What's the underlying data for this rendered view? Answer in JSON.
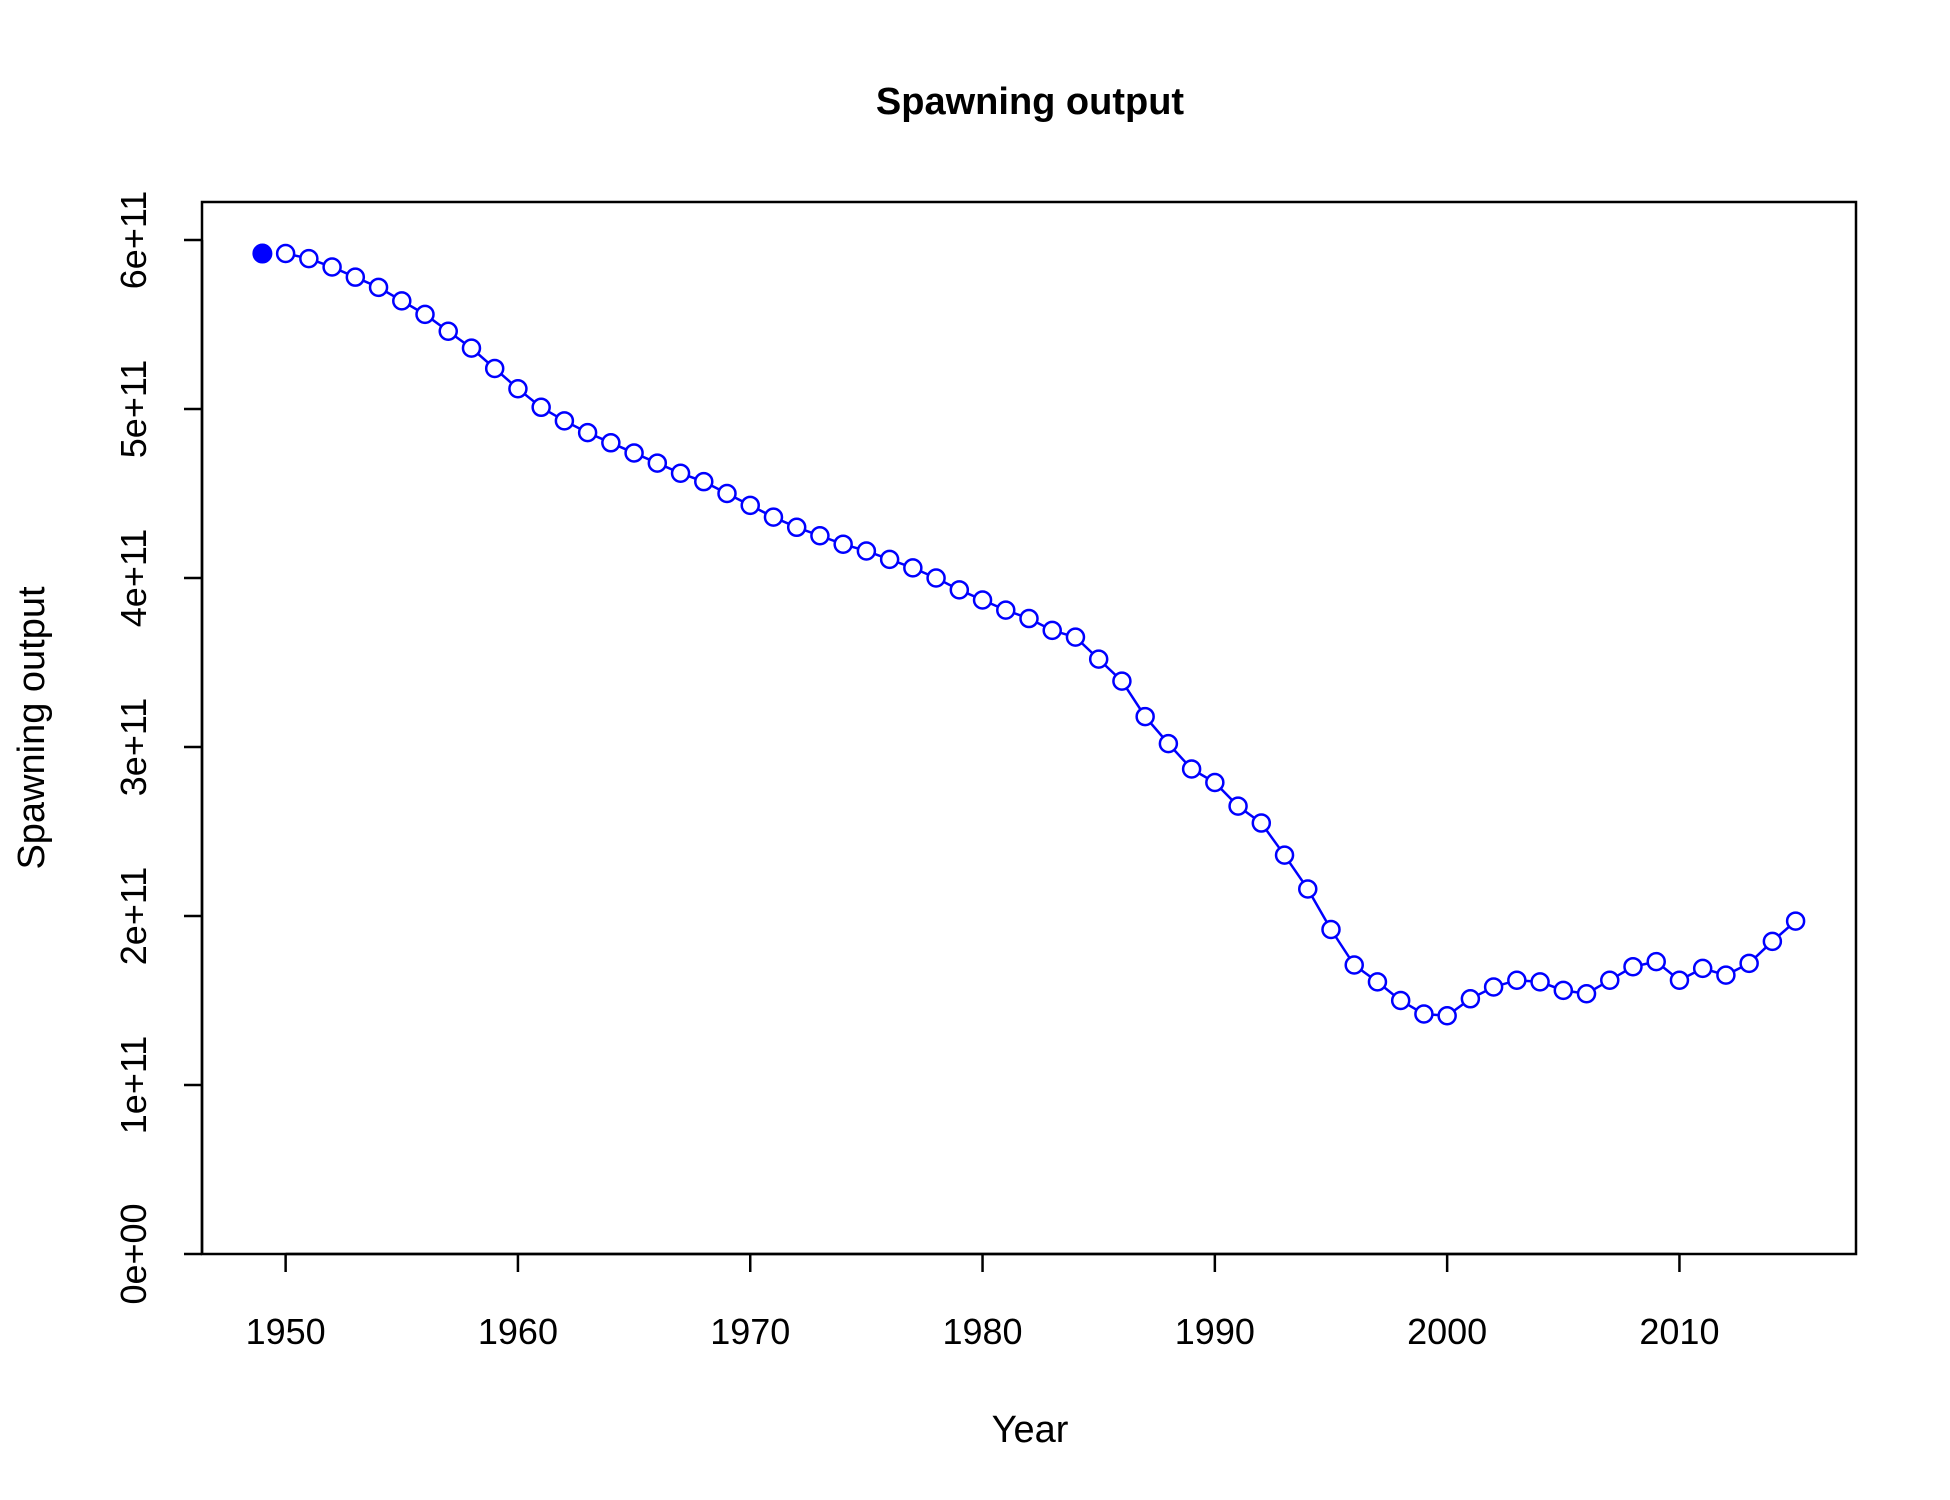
{
  "chart_data": {
    "type": "line",
    "title": "Spawning output",
    "xlabel": "Year",
    "ylabel": "Spawning output",
    "xlim": [
      1946.4,
      2017.6
    ],
    "ylim": [
      0,
      600000000000
    ],
    "x_ticks": [
      1950,
      1960,
      1970,
      1980,
      1990,
      2000,
      2010
    ],
    "x_tick_labels": [
      "1950",
      "1960",
      "1970",
      "1980",
      "1990",
      "2000",
      "2010"
    ],
    "y_ticks": [
      0,
      100000000000,
      200000000000,
      300000000000,
      400000000000,
      500000000000,
      600000000000
    ],
    "y_tick_labels": [
      "0e+00",
      "1e+11",
      "2e+11",
      "3e+11",
      "4e+11",
      "5e+11",
      "6e+11"
    ],
    "grid": false,
    "legend": "none",
    "colors": {
      "series": "#0000ff",
      "axis": "#000000"
    },
    "virgin_point": {
      "x": 1949,
      "y": 592000000000,
      "marker": "filled-circle"
    },
    "series": [
      {
        "marker": "open-circle",
        "x": [
          1950,
          1951,
          1952,
          1953,
          1954,
          1955,
          1956,
          1957,
          1958,
          1959,
          1960,
          1961,
          1962,
          1963,
          1964,
          1965,
          1966,
          1967,
          1968,
          1969,
          1970,
          1971,
          1972,
          1973,
          1974,
          1975,
          1976,
          1977,
          1978,
          1979,
          1980,
          1981,
          1982,
          1983,
          1984,
          1985,
          1986,
          1987,
          1988,
          1989,
          1990,
          1991,
          1992,
          1993,
          1994,
          1995,
          1996,
          1997,
          1998,
          1999,
          2000,
          2001,
          2002,
          2003,
          2004,
          2005,
          2006,
          2007,
          2008,
          2009,
          2010,
          2011,
          2012,
          2013,
          2014,
          2015
        ],
        "y": [
          592000000000,
          589000000000,
          584000000000,
          578000000000,
          572000000000,
          564000000000,
          556000000000,
          546000000000,
          536000000000,
          524000000000,
          512000000000,
          501000000000,
          493000000000,
          486000000000,
          480000000000,
          474000000000,
          468000000000,
          462000000000,
          457000000000,
          450000000000,
          443000000000,
          436000000000,
          430000000000,
          425000000000,
          420000000000,
          416000000000,
          411000000000,
          406000000000,
          400000000000,
          393000000000,
          387000000000,
          381000000000,
          376000000000,
          369000000000,
          365000000000,
          352000000000,
          339000000000,
          318000000000,
          302000000000,
          287000000000,
          279000000000,
          265000000000,
          255000000000,
          236000000000,
          216000000000,
          192000000000,
          171000000000,
          161000000000,
          150000000000,
          142000000000,
          141000000000,
          151000000000,
          158000000000,
          162000000000,
          161000000000,
          156000000000,
          154000000000,
          162000000000,
          170000000000,
          173000000000,
          162000000000,
          169000000000,
          165000000000,
          172000000000,
          185000000000,
          197000000000
        ]
      }
    ]
  }
}
